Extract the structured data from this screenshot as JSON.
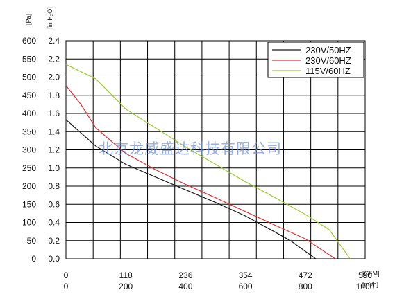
{
  "chart_data": {
    "type": "line",
    "title": "",
    "y_units": {
      "pa": "[Pa]",
      "inh2o": "[in H₂O]"
    },
    "x_units": {
      "cfm": "[CFM]",
      "m3h": "[m³/h]"
    },
    "x_ticks_cfm": [
      "0",
      "118",
      "236",
      "354",
      "472",
      "590"
    ],
    "x_ticks_m3h": [
      "0",
      "200",
      "400",
      "600",
      "800",
      "1000"
    ],
    "xlim_m3h": [
      0,
      1000
    ],
    "y_ticks_pa": [
      "0",
      "50",
      "100",
      "150",
      "200",
      "250",
      "300",
      "350",
      "400",
      "450",
      "500",
      "550",
      "600"
    ],
    "y_ticks_inh2o": [
      "0.0",
      "0.2",
      "0.4",
      "0.6",
      "0.8",
      "1.0",
      "1.2",
      "1.4",
      "1.6",
      "1.8",
      "2.0",
      "2.2",
      "2.4"
    ],
    "ylim_pa": [
      0,
      600
    ],
    "grid": true,
    "legend_position": "top-right",
    "series": [
      {
        "name": "230V/50HZ",
        "color": "#1a1a1a",
        "x": [
          0,
          100,
          200,
          300,
          400,
          500,
          600,
          700,
          750,
          835
        ],
        "y": [
          383,
          310,
          260,
          225,
          190,
          155,
          118,
          73,
          50,
          0
        ]
      },
      {
        "name": "230V/60HZ",
        "color": "#e03030",
        "x": [
          0,
          50,
          100,
          200,
          300,
          400,
          500,
          600,
          700,
          800,
          900
        ],
        "y": [
          477,
          425,
          360,
          290,
          245,
          205,
          168,
          130,
          92,
          55,
          0
        ]
      },
      {
        "name": "115V/60HZ",
        "color": "#9ccc30",
        "x": [
          0,
          100,
          200,
          300,
          400,
          500,
          600,
          700,
          800,
          880,
          950
        ],
        "y": [
          535,
          495,
          412,
          360,
          308,
          260,
          212,
          168,
          122,
          80,
          0
        ]
      }
    ],
    "watermark": "北京龙威盛达科技有限公司"
  }
}
